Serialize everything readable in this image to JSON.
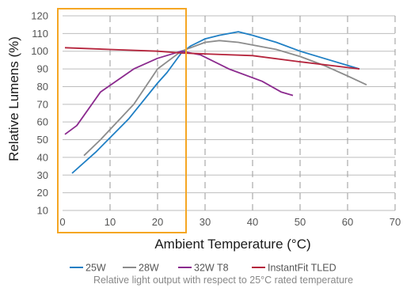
{
  "chart_data": {
    "type": "line",
    "xlabel": "Ambient Temperature (°C)",
    "ylabel": "Relative Lumens (%)",
    "xlim": [
      0,
      70
    ],
    "ylim": [
      10,
      120
    ],
    "x_ticks": [
      0,
      10,
      20,
      30,
      40,
      50,
      60,
      70
    ],
    "y_ticks": [
      10,
      20,
      30,
      40,
      50,
      60,
      70,
      80,
      90,
      100,
      110,
      120
    ],
    "grid": "dashed vertical gridlines, solid horizontal gridlines",
    "legend_position": "bottom",
    "caption": "Relative light output with respect to 25°C rated temperature",
    "highlight_box": {
      "x_range": [
        -1,
        26
      ],
      "color": "#f5a623"
    },
    "series": [
      {
        "name": "25W",
        "color": "#1f7fc4",
        "points": [
          [
            2,
            31
          ],
          [
            7,
            43
          ],
          [
            14,
            62
          ],
          [
            20,
            82
          ],
          [
            22,
            88
          ],
          [
            25,
            99
          ],
          [
            27,
            103
          ],
          [
            30,
            107
          ],
          [
            33,
            109
          ],
          [
            37,
            111
          ],
          [
            40,
            109
          ],
          [
            45,
            105
          ],
          [
            50,
            100
          ],
          [
            55,
            96
          ],
          [
            62.5,
            90
          ]
        ]
      },
      {
        "name": "28W",
        "color": "#8c8c8c",
        "points": [
          [
            4.5,
            41
          ],
          [
            8,
            50
          ],
          [
            15,
            70
          ],
          [
            20,
            90
          ],
          [
            25,
            100
          ],
          [
            30,
            105
          ],
          [
            33,
            106
          ],
          [
            37,
            105
          ],
          [
            45,
            101
          ],
          [
            50,
            97
          ],
          [
            55,
            92
          ],
          [
            60,
            86
          ],
          [
            64,
            81
          ]
        ]
      },
      {
        "name": "32W T8",
        "color": "#8b2a8e",
        "points": [
          [
            0.5,
            53
          ],
          [
            3,
            58
          ],
          [
            8,
            77
          ],
          [
            15,
            90
          ],
          [
            20,
            96
          ],
          [
            25,
            100
          ],
          [
            29,
            98
          ],
          [
            35,
            90
          ],
          [
            42,
            83
          ],
          [
            46,
            77
          ],
          [
            48.5,
            75
          ]
        ]
      },
      {
        "name": "InstantFit TLED",
        "color": "#b5243c",
        "points": [
          [
            0.5,
            102
          ],
          [
            10,
            101
          ],
          [
            20,
            100
          ],
          [
            25,
            99
          ],
          [
            30,
            98.5
          ],
          [
            40,
            97.5
          ],
          [
            50,
            94
          ],
          [
            62.5,
            90
          ]
        ]
      }
    ]
  }
}
